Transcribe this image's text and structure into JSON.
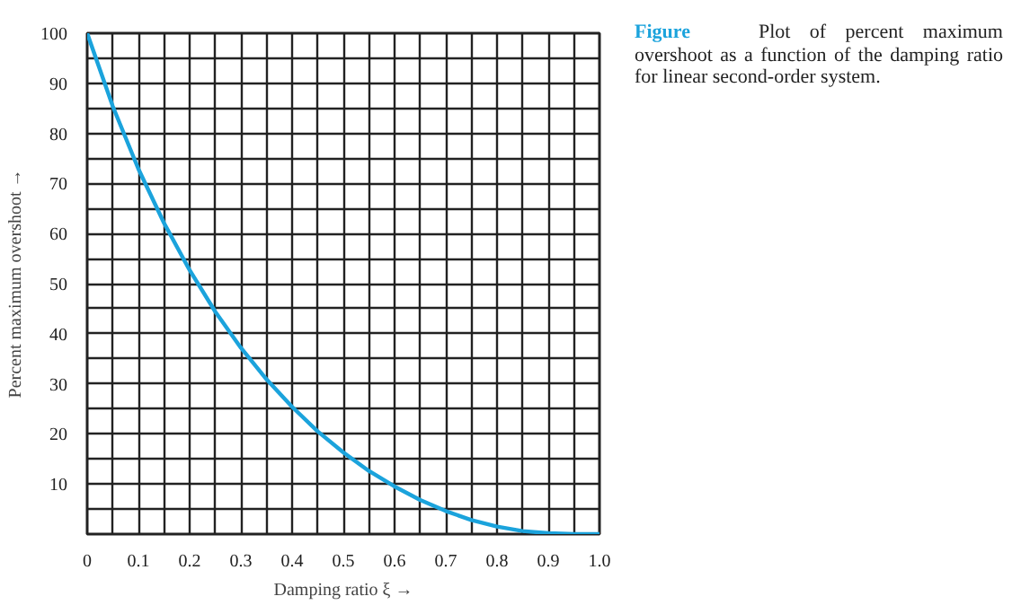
{
  "chart_data": {
    "type": "line",
    "xlabel": "Damping ratio ξ →",
    "ylabel": "Percent maximum overshoot →",
    "annotations": [
      "Figure",
      "Plot of percent maximum overshoot as a function of the damping ratio for linear second-order system."
    ],
    "x": [
      0,
      0.05,
      0.1,
      0.15,
      0.2,
      0.25,
      0.3,
      0.35,
      0.4,
      0.45,
      0.5,
      0.55,
      0.6,
      0.65,
      0.7,
      0.75,
      0.8,
      0.85,
      0.9,
      0.95,
      1.0
    ],
    "series": [
      {
        "color": "#1ba3dc",
        "values": [
          100,
          85.4,
          72.9,
          62.1,
          52.7,
          44.4,
          37.2,
          30.9,
          25.4,
          20.5,
          16.3,
          12.6,
          9.5,
          6.8,
          4.6,
          2.8,
          1.5,
          0.6,
          0.2,
          0,
          0
        ]
      }
    ],
    "xlim": [
      0,
      1.0
    ],
    "ylim": [
      0,
      100
    ],
    "xticks": [
      {
        "value": 0,
        "label": "0"
      },
      {
        "value": 0.05,
        "label": null
      },
      0.1,
      {
        "value": 0.15,
        "label": null
      },
      0.2,
      {
        "value": 0.25,
        "label": null
      },
      0.3,
      {
        "value": 0.35,
        "label": null
      },
      0.4,
      {
        "value": 0.45,
        "label": null
      },
      0.5,
      {
        "value": 0.55,
        "label": null
      },
      0.6,
      {
        "value": 0.65,
        "label": null
      },
      0.7,
      {
        "value": 0.75,
        "label": null
      },
      0.8,
      {
        "value": 0.85,
        "label": null
      },
      0.9,
      {
        "value": 0.95,
        "label": null
      },
      {
        "value": 1.0,
        "label": "1.0"
      }
    ],
    "yticks": [
      {
        "value": 0,
        "label": null
      },
      {
        "value": 5,
        "label": null
      },
      10,
      {
        "value": 15,
        "label": null
      },
      20,
      {
        "value": 25,
        "label": null
      },
      30,
      {
        "value": 35,
        "label": null
      },
      40,
      {
        "value": 45,
        "label": null
      },
      50,
      {
        "value": 55,
        "label": null
      },
      60,
      {
        "value": 65,
        "label": null
      },
      70,
      {
        "value": 75,
        "label": null
      },
      80,
      {
        "value": 85,
        "label": null
      },
      90,
      {
        "value": 95,
        "label": null
      },
      100
    ],
    "grid": true,
    "line_style": "solid",
    "marker": "none"
  }
}
